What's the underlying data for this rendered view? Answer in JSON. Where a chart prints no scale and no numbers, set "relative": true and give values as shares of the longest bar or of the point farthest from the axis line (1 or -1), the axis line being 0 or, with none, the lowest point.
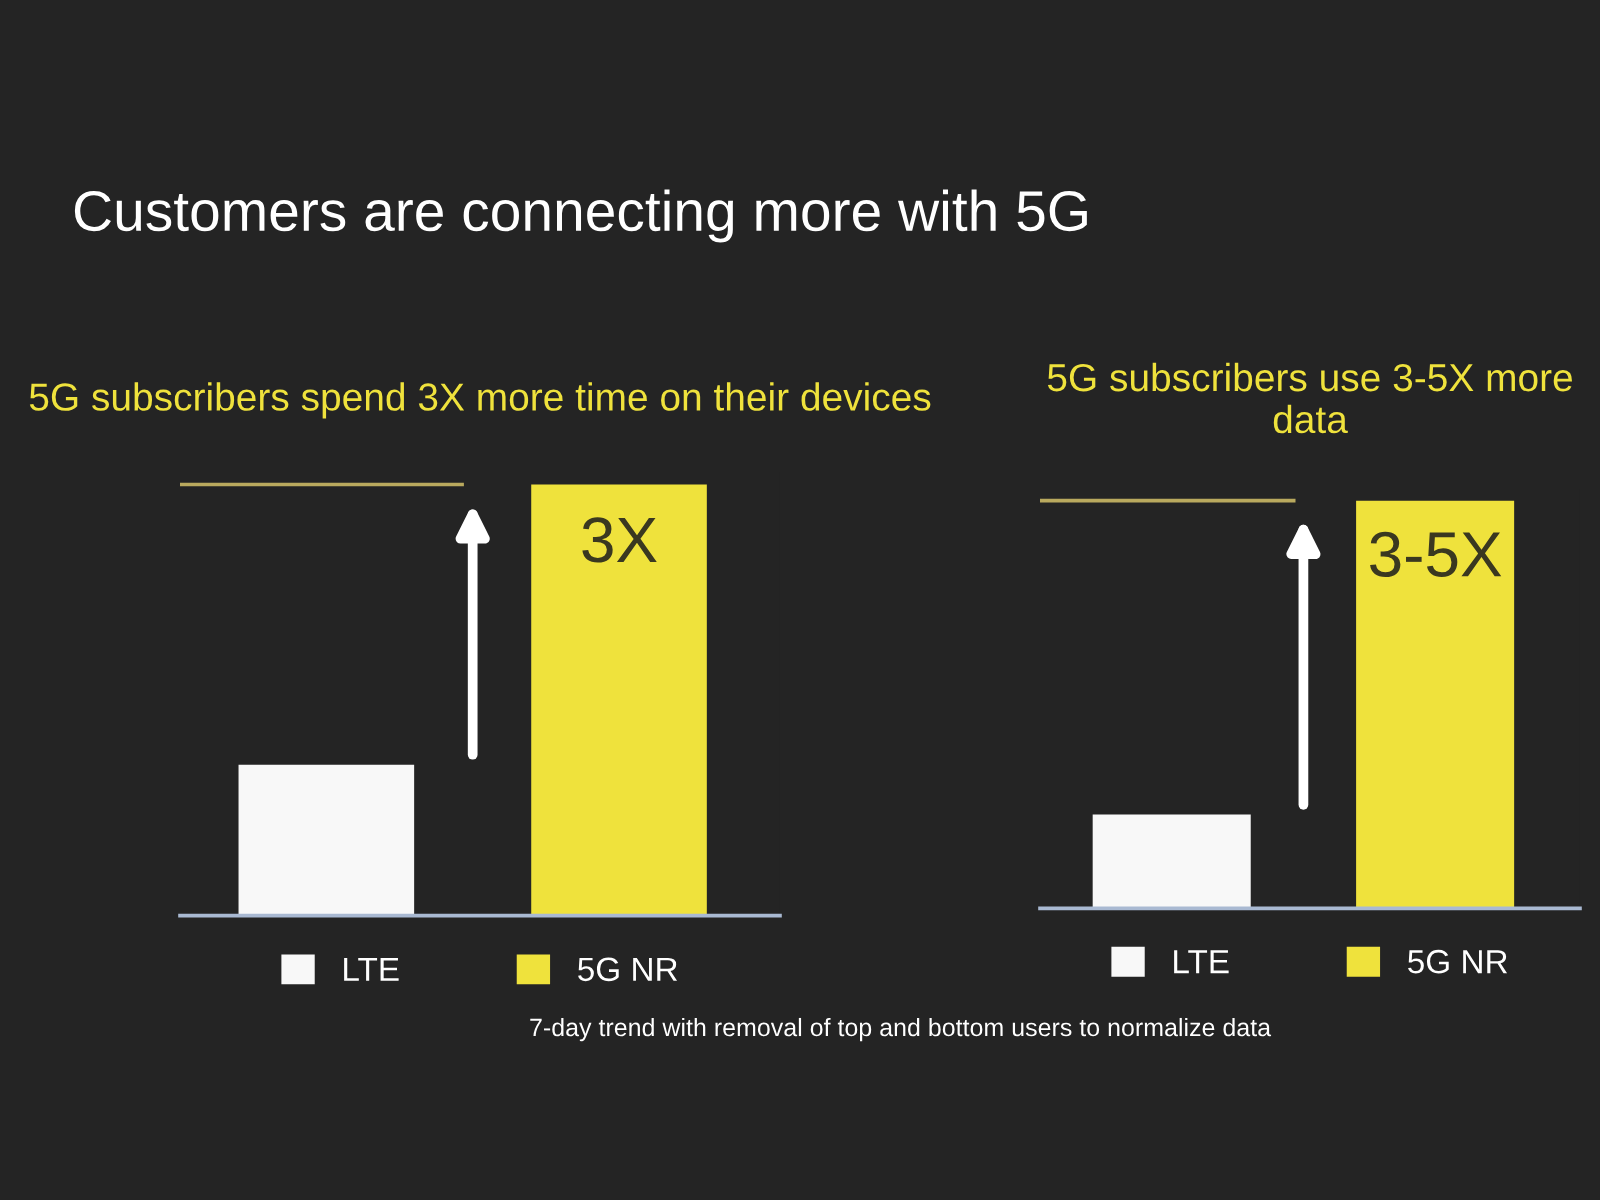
{
  "chart_data": [
    {
      "type": "bar",
      "title": "Customers are connecting more with 5G",
      "subtitle": "5G subscribers spend 3X more time on their devices",
      "relative": true,
      "stacked": true,
      "tick_labels": false,
      "categories": [
        null,
        null
      ],
      "series": [
        {
          "name": "LTE",
          "color": "#f8f8f8",
          "values": [
            0.35,
            null
          ]
        },
        {
          "name": "5G NR",
          "color": "#efe23c",
          "values": [
            null,
            1
          ]
        }
      ],
      "ref_lines": [
        {
          "axis": "y",
          "value": 1,
          "color": "#b9a95e"
        }
      ],
      "legend": "bottom",
      "annotations": [
        {
          "text": "3X",
          "y": 1
        }
      ]
    },
    {
      "type": "bar",
      "subtitle": "5G subscribers use 3-5X more data",
      "relative": true,
      "stacked": true,
      "tick_labels": false,
      "categories": [
        null,
        null
      ],
      "series": [
        {
          "name": "LTE",
          "color": "#f8f8f8",
          "values": [
            0.23,
            null
          ]
        },
        {
          "name": "5G NR",
          "color": "#efe23c",
          "values": [
            null,
            1
          ]
        }
      ],
      "ref_lines": [
        {
          "axis": "y",
          "value": 1,
          "color": "#b9a95e"
        }
      ],
      "legend": "bottom",
      "annotations": [
        {
          "text": "3-5X",
          "y": 1
        },
        "7-day trend with removal of top and bottom users to normalize data"
      ]
    }
  ]
}
